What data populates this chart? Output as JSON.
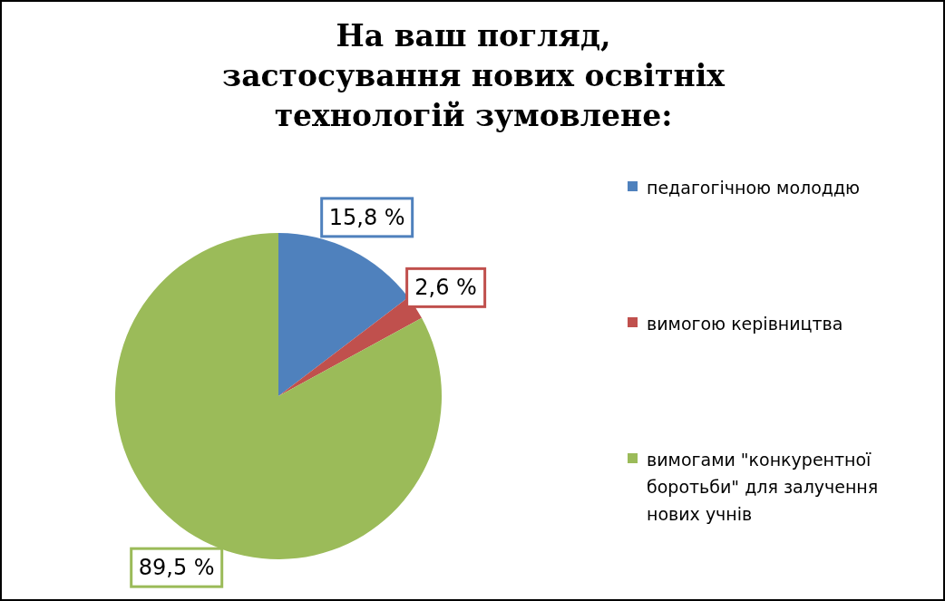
{
  "chart_data": {
    "type": "pie",
    "title": "На ваш погляд,\nзастосування нових освітніх\nтехнологій зумовлене:",
    "categories": [
      "педагогічною молоддю",
      "вимогою керівництва",
      "вимогами \"конкурентної боротьби\" для залучення нових учнів"
    ],
    "values": [
      15.8,
      2.6,
      89.5
    ],
    "colors": [
      "#4f81bd",
      "#c0504d",
      "#9bbb59"
    ],
    "value_labels": [
      "15,8 %",
      "2,6 %",
      "89,5 %"
    ],
    "legend": "right"
  }
}
